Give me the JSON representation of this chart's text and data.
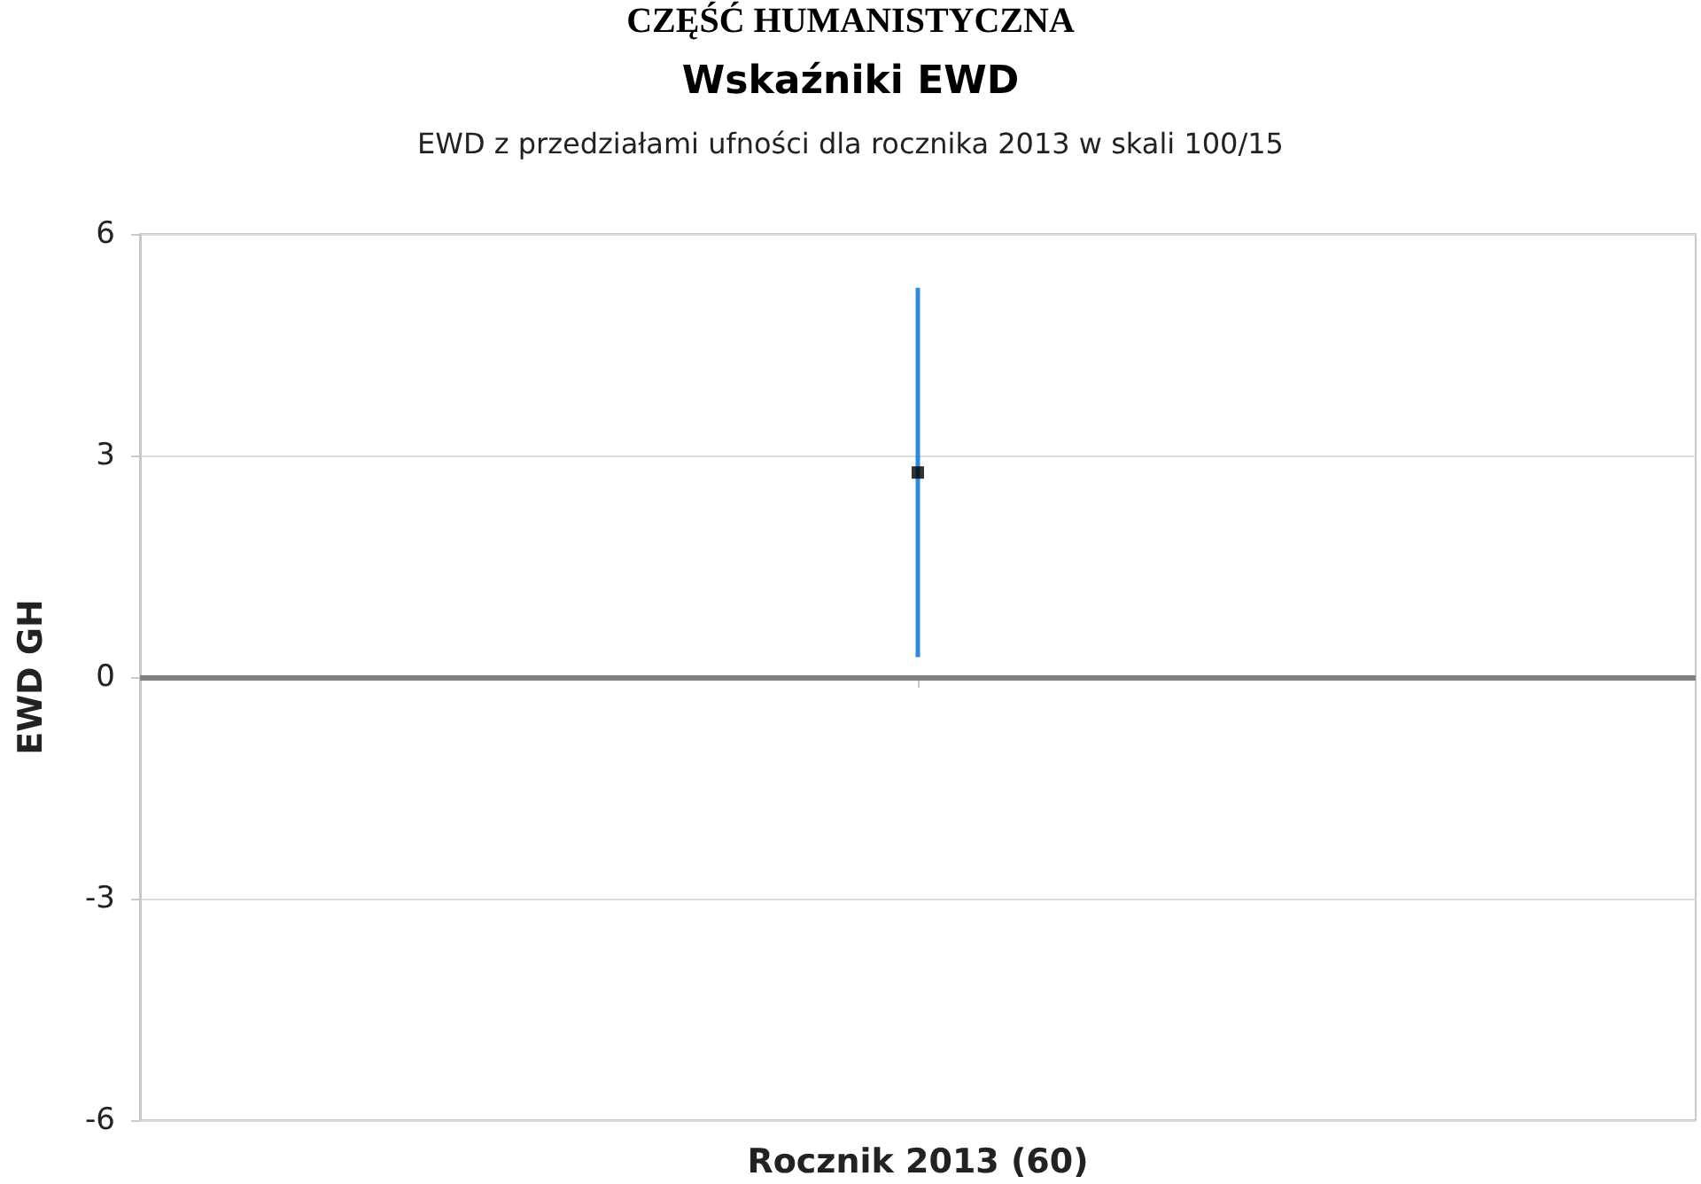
{
  "chart_data": {
    "type": "scatter",
    "title": "Wskaźniki EWD",
    "subtitle": "EWD z przedziałami ufności dla rocznika 2013 w skali 100/15",
    "ylabel": "EWD GH",
    "annotations": [
      "CZĘŚĆ HUMANISTYCZNA"
    ],
    "categories": [
      "Rocznik 2013 (60)"
    ],
    "series": [
      {
        "color": "#000000",
        "values": [
          2.77
        ],
        "errors": [
          2.5
        ]
      }
    ],
    "ylim": [
      -6,
      6
    ],
    "yticks": [
      -6,
      -3,
      0,
      3,
      6
    ],
    "grid": "y",
    "marker": "square",
    "ref_lines": [
      {
        "axis": "y",
        "value": 0,
        "color": "#808080"
      }
    ]
  }
}
